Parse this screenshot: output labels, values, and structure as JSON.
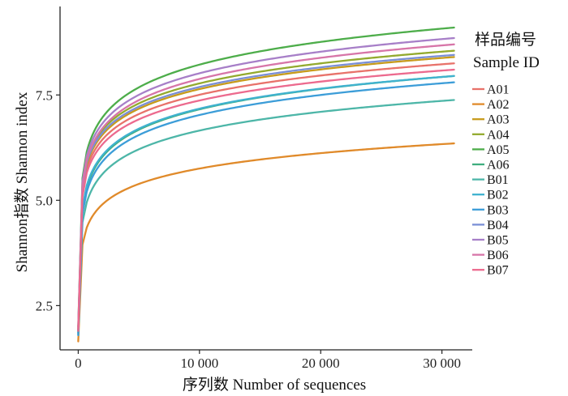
{
  "chart_data": {
    "type": "line",
    "xlabel": "序列数  Number of sequences",
    "ylabel": "Shannon指数  Shannon index",
    "xlim": [
      -1500,
      32500
    ],
    "ylim": [
      1.45,
      9.6
    ],
    "x_ticks": [
      0,
      10000,
      20000,
      30000
    ],
    "x_tick_labels": [
      "0",
      "10 000",
      "20 000",
      "30 000"
    ],
    "y_ticks": [
      2.5,
      5.0,
      7.5
    ],
    "y_tick_labels": [
      "2.5",
      "5.0",
      "7.5"
    ],
    "grid": false,
    "legend": {
      "title_line1": "样品编号",
      "title_line2": "Sample ID",
      "placement": "right"
    },
    "series": [
      {
        "name": "A01",
        "color": "#E8726A",
        "start": 1.9,
        "at_knee": 5.75,
        "end": 8.25
      },
      {
        "name": "A02",
        "color": "#E08A2A",
        "start": 1.65,
        "at_knee": 4.35,
        "end": 6.35
      },
      {
        "name": "A03",
        "color": "#C79B1C",
        "start": 1.85,
        "at_knee": 5.85,
        "end": 8.4
      },
      {
        "name": "A04",
        "color": "#93AA2E",
        "start": 1.9,
        "at_knee": 5.95,
        "end": 8.55
      },
      {
        "name": "A05",
        "color": "#4DAD4A",
        "start": 2.0,
        "at_knee": 6.15,
        "end": 9.1
      },
      {
        "name": "A06",
        "color": "#3FAE7F",
        "start": 1.9,
        "at_knee": 5.3,
        "end": 7.95
      },
      {
        "name": "B01",
        "color": "#4DB6A8",
        "start": 1.8,
        "at_knee": 4.95,
        "end": 7.38
      },
      {
        "name": "B02",
        "color": "#3FB2CF",
        "start": 1.85,
        "at_knee": 5.35,
        "end": 7.95
      },
      {
        "name": "B03",
        "color": "#3C9DD8",
        "start": 1.8,
        "at_knee": 5.2,
        "end": 7.8
      },
      {
        "name": "B04",
        "color": "#7A8FD6",
        "start": 1.9,
        "at_knee": 5.9,
        "end": 8.45
      },
      {
        "name": "B05",
        "color": "#A77FC8",
        "start": 2.0,
        "at_knee": 6.05,
        "end": 8.85
      },
      {
        "name": "B06",
        "color": "#D775A8",
        "start": 1.95,
        "at_knee": 5.95,
        "end": 8.7
      },
      {
        "name": "B07",
        "color": "#EC6A8E",
        "start": 1.9,
        "at_knee": 5.65,
        "end": 8.1
      }
    ]
  }
}
